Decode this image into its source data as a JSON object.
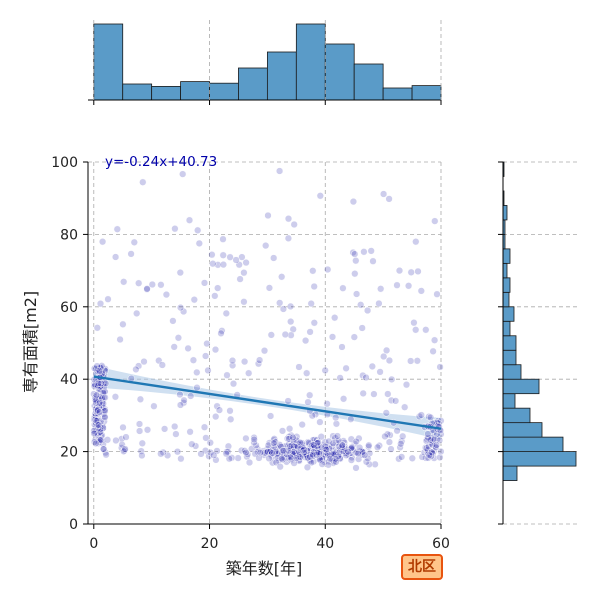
{
  "badge": {
    "label": "北区",
    "bg": "#ffc58a",
    "border": "#e8540f"
  },
  "chart_data": {
    "type": "scatter",
    "title": "",
    "xlabel": "築年数[年]",
    "ylabel": "専有面積[m2]",
    "xlim": [
      -1,
      60
    ],
    "ylim": [
      0,
      100
    ],
    "xticks": [
      0,
      20,
      40,
      60
    ],
    "yticks": [
      0,
      20,
      40,
      60,
      80,
      100
    ],
    "grid": true,
    "point_color": "#1a1aaa",
    "regression": {
      "slope": -0.24,
      "intercept": 40.73,
      "equation": "y=-0.24x+40.73",
      "color": "#1f77b4",
      "ci_color": "#a9c7e6"
    },
    "marginal_x": {
      "type": "histogram",
      "color": "#5a9bc8",
      "bin_edges": [
        0,
        5,
        10,
        15,
        20,
        25,
        30,
        35,
        40,
        45,
        50,
        55,
        60
      ],
      "counts": [
        95,
        20,
        17,
        23,
        21,
        40,
        60,
        95,
        70,
        45,
        15,
        18
      ]
    },
    "marginal_y": {
      "type": "histogram",
      "color": "#5a9bc8",
      "bin_edges": [
        12,
        16,
        20,
        24,
        28,
        32,
        36,
        40,
        44,
        48,
        52,
        56,
        60,
        64,
        68,
        72,
        76,
        80,
        84,
        88,
        92,
        96,
        100
      ],
      "counts": [
        14,
        73,
        60,
        39,
        27,
        12,
        36,
        18,
        13,
        13,
        7,
        11,
        6,
        7,
        4,
        7,
        2,
        2,
        4,
        1,
        0,
        1
      ]
    }
  }
}
